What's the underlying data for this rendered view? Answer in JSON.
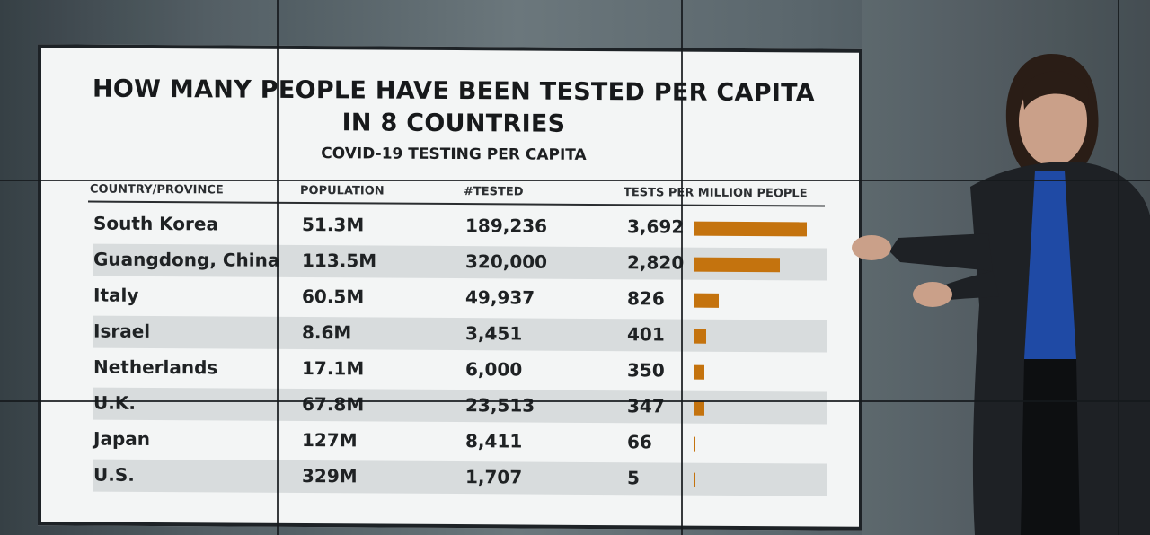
{
  "chart_data": {
    "type": "table",
    "title": "HOW MANY PEOPLE HAVE BEEN TESTED PER CAPITA",
    "title_line2": "IN 8 COUNTRIES",
    "subtitle": "COVID-19 TESTING PER CAPITA",
    "columns": [
      "COUNTRY/PROVINCE",
      "POPULATION",
      "#TESTED",
      "TESTS PER MILLION PEOPLE"
    ],
    "rows": [
      {
        "country": "South Korea",
        "population": "51.3M",
        "tested": "189,236",
        "per_million": "3,692",
        "value": 3692
      },
      {
        "country": "Guangdong, China",
        "population": "113.5M",
        "tested": "320,000",
        "per_million": "2,820",
        "value": 2820
      },
      {
        "country": "Italy",
        "population": "60.5M",
        "tested": "49,937",
        "per_million": "826",
        "value": 826
      },
      {
        "country": "Israel",
        "population": "8.6M",
        "tested": "3,451",
        "per_million": "401",
        "value": 401
      },
      {
        "country": "Netherlands",
        "population": "17.1M",
        "tested": "6,000",
        "per_million": "350",
        "value": 350
      },
      {
        "country": "U.K.",
        "population": "67.8M",
        "tested": "23,513",
        "per_million": "347",
        "value": 347
      },
      {
        "country": "Japan",
        "population": "127M",
        "tested": "8,411",
        "per_million": "66",
        "value": 66
      },
      {
        "country": "U.S.",
        "population": "329M",
        "tested": "1,707",
        "per_million": "5",
        "value": 5
      }
    ],
    "bar_color": "#c4730e",
    "bar_max": 3692
  }
}
